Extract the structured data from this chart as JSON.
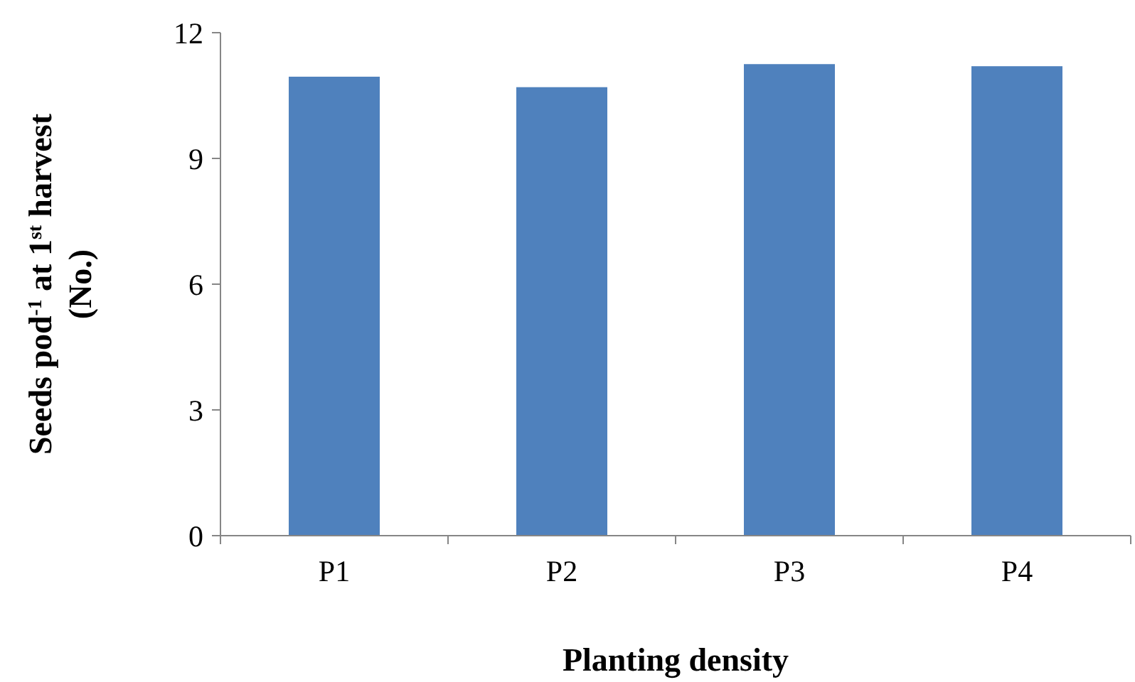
{
  "chart_data": {
    "type": "bar",
    "xlabel": "Planting density",
    "ylabel": "Seeds pod$^{-1}$ at 1$^{st}$ harvest\n(No.)",
    "categories": [
      "P1",
      "P2",
      "P3",
      "P4"
    ],
    "values": [
      10.95,
      10.7,
      11.25,
      11.2
    ],
    "color": "#4f81bd",
    "ylim": [
      0,
      12
    ],
    "yticks": [
      0,
      3,
      6,
      9,
      12
    ],
    "grid": false
  }
}
